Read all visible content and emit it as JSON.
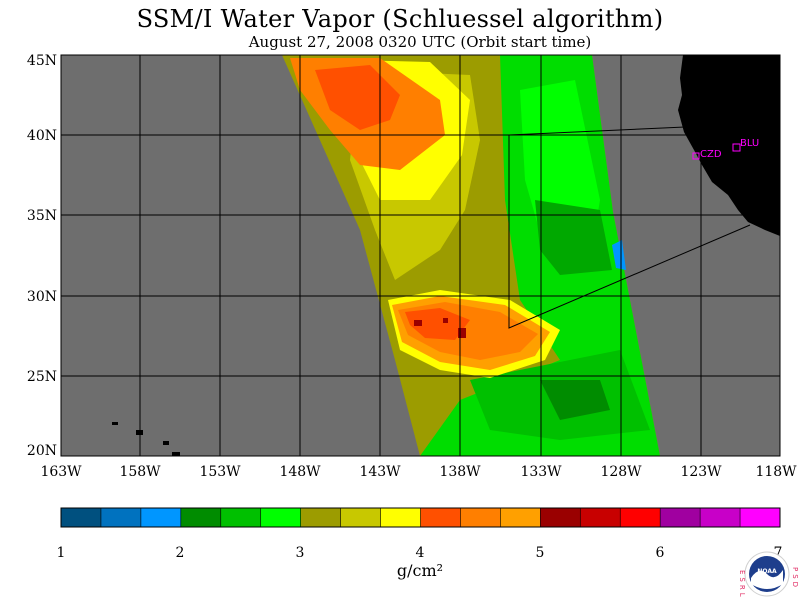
{
  "title": "SSM/I Water Vapor (Schluessel algorithm)",
  "subtitle": "August 27, 2008  0320 UTC  (Orbit start time)",
  "map": {
    "lon_ticks": [
      "163W",
      "158W",
      "153W",
      "148W",
      "143W",
      "138W",
      "133W",
      "128W",
      "123W",
      "118W"
    ],
    "lat_ticks": [
      "45N",
      "40N",
      "35N",
      "30N",
      "25N",
      "20N"
    ],
    "stations": [
      {
        "code": "CZD"
      },
      {
        "code": "BLU"
      }
    ],
    "colors": {
      "no_data": "#6e6e6e",
      "land": "#000000",
      "grid": "#000000",
      "station": "#ff00ff"
    }
  },
  "colorbar": {
    "tick_labels": [
      "1",
      "2",
      "3",
      "4",
      "5",
      "6",
      "7"
    ],
    "units": "g/cm²",
    "colors": [
      "#00507f",
      "#0072bf",
      "#0096ff",
      "#008c00",
      "#00c000",
      "#00ff00",
      "#9c9c00",
      "#c8c800",
      "#ffff00",
      "#ff5000",
      "#ff7f00",
      "#ffa000",
      "#9a0000",
      "#c80000",
      "#ff0000",
      "#a000a0",
      "#c800c8",
      "#ff00ff"
    ]
  },
  "logo": {
    "left_text": "ESRL",
    "right_text": "PSD",
    "center_text": "NOAA"
  }
}
